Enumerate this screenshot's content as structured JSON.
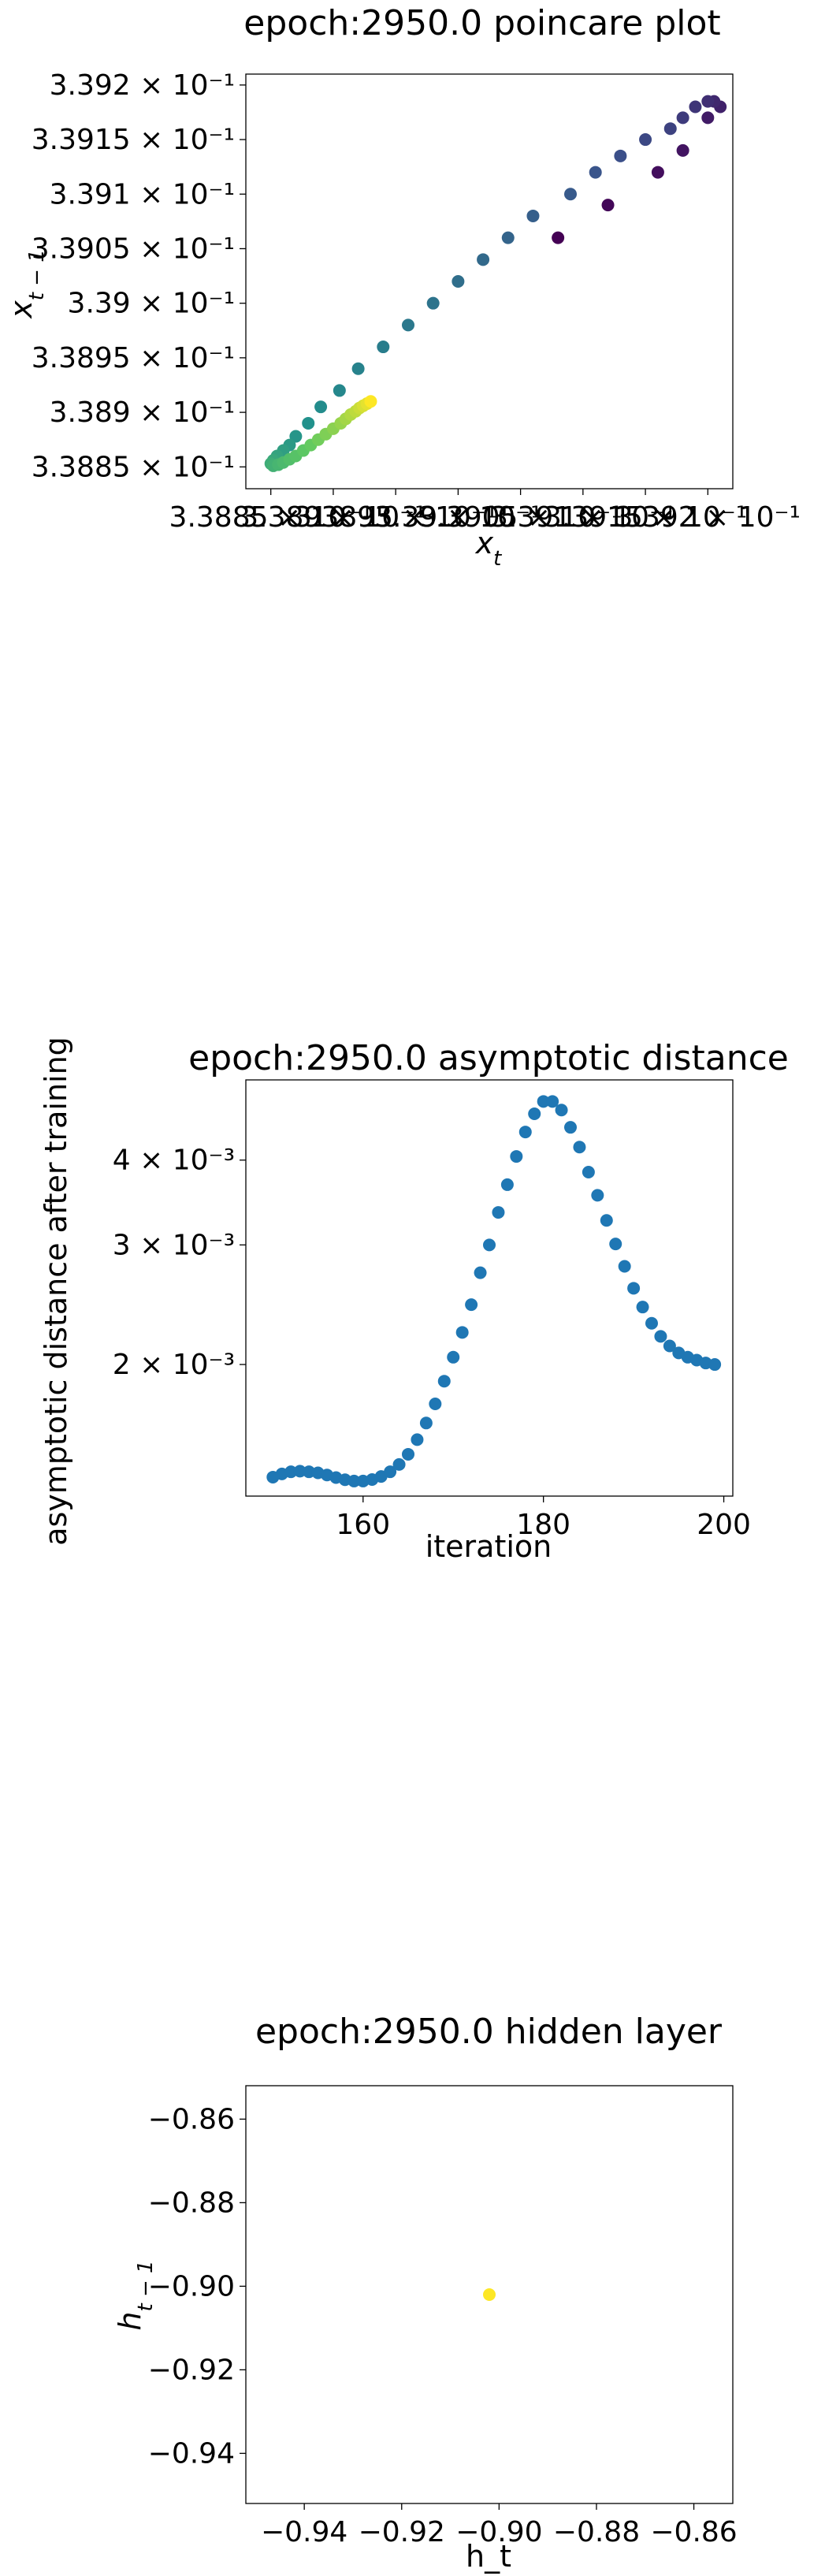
{
  "chart_data": [
    {
      "type": "scatter",
      "title": "epoch:2950.0 poincare plot",
      "xlabel": "x_t",
      "ylabel": "x_{t-1}",
      "xlim": [
        0.33883,
        0.33922
      ],
      "ylim": [
        0.33883,
        0.33921
      ],
      "y_ticks": [
        {
          "value": 0.33885,
          "label": "3.3885 × 10⁻¹"
        },
        {
          "value": 0.3389,
          "label": "3.389 × 10⁻¹"
        },
        {
          "value": 0.33895,
          "label": "3.3895 × 10⁻¹"
        },
        {
          "value": 0.339,
          "label": "3.39 × 10⁻¹"
        },
        {
          "value": 0.33905,
          "label": "3.3905 × 10⁻¹"
        },
        {
          "value": 0.3391,
          "label": "3.391 × 10⁻¹"
        },
        {
          "value": 0.33915,
          "label": "3.3915 × 10⁻¹"
        },
        {
          "value": 0.3392,
          "label": "3.392 × 10⁻¹"
        }
      ],
      "x_ticks": [
        {
          "value": 0.33885,
          "label": "3.3885 × 10⁻¹"
        },
        {
          "value": 0.3389,
          "label": "3.389 × 10⁻¹"
        },
        {
          "value": 0.33895,
          "label": "3.3895 × 10⁻¹"
        },
        {
          "value": 0.339,
          "label": "3.39 × 10⁻¹"
        },
        {
          "value": 0.33905,
          "label": "3.3905 × 10⁻¹"
        },
        {
          "value": 0.3391,
          "label": "3.391 × 10⁻¹"
        },
        {
          "value": 0.33915,
          "label": "3.3915 × 10⁻¹"
        },
        {
          "value": 0.3392,
          "label": "3.392 × 10⁻¹"
        }
      ],
      "colormap": [
        "#440154",
        "#3b528b",
        "#21918c",
        "#5ec962",
        "#fde725"
      ],
      "points": [
        {
          "x": 0.33908,
          "y": 0.33906,
          "c": 0.0
        },
        {
          "x": 0.33912,
          "y": 0.33909,
          "c": 0.02
        },
        {
          "x": 0.33916,
          "y": 0.33912,
          "c": 0.04
        },
        {
          "x": 0.33918,
          "y": 0.33914,
          "c": 0.06
        },
        {
          "x": 0.3392,
          "y": 0.33917,
          "c": 0.08
        },
        {
          "x": 0.33921,
          "y": 0.33918,
          "c": 0.1
        },
        {
          "x": 0.339205,
          "y": 0.339185,
          "c": 0.12
        },
        {
          "x": 0.3392,
          "y": 0.339185,
          "c": 0.14
        },
        {
          "x": 0.33919,
          "y": 0.33918,
          "c": 0.16
        },
        {
          "x": 0.33918,
          "y": 0.33917,
          "c": 0.18
        },
        {
          "x": 0.33917,
          "y": 0.33916,
          "c": 0.2
        },
        {
          "x": 0.33915,
          "y": 0.33915,
          "c": 0.22
        },
        {
          "x": 0.33913,
          "y": 0.339135,
          "c": 0.24
        },
        {
          "x": 0.33911,
          "y": 0.33912,
          "c": 0.26
        },
        {
          "x": 0.33909,
          "y": 0.3391,
          "c": 0.28
        },
        {
          "x": 0.33906,
          "y": 0.33908,
          "c": 0.3
        },
        {
          "x": 0.33904,
          "y": 0.33906,
          "c": 0.32
        },
        {
          "x": 0.33902,
          "y": 0.33904,
          "c": 0.34
        },
        {
          "x": 0.339,
          "y": 0.33902,
          "c": 0.36
        },
        {
          "x": 0.33898,
          "y": 0.339,
          "c": 0.38
        },
        {
          "x": 0.33896,
          "y": 0.33898,
          "c": 0.4
        },
        {
          "x": 0.33894,
          "y": 0.33896,
          "c": 0.42
        },
        {
          "x": 0.33892,
          "y": 0.33894,
          "c": 0.44
        },
        {
          "x": 0.338905,
          "y": 0.33892,
          "c": 0.46
        },
        {
          "x": 0.33889,
          "y": 0.338905,
          "c": 0.48
        },
        {
          "x": 0.33888,
          "y": 0.33889,
          "c": 0.5
        },
        {
          "x": 0.33887,
          "y": 0.338878,
          "c": 0.52
        },
        {
          "x": 0.338865,
          "y": 0.33887,
          "c": 0.54
        },
        {
          "x": 0.33886,
          "y": 0.338865,
          "c": 0.56
        },
        {
          "x": 0.338855,
          "y": 0.33886,
          "c": 0.58
        },
        {
          "x": 0.338852,
          "y": 0.338856,
          "c": 0.6
        },
        {
          "x": 0.33885,
          "y": 0.338853,
          "c": 0.62
        },
        {
          "x": 0.338852,
          "y": 0.338851,
          "c": 0.64
        },
        {
          "x": 0.338856,
          "y": 0.338852,
          "c": 0.66
        },
        {
          "x": 0.33886,
          "y": 0.338854,
          "c": 0.68
        },
        {
          "x": 0.338865,
          "y": 0.338857,
          "c": 0.7
        },
        {
          "x": 0.33887,
          "y": 0.33886,
          "c": 0.72
        },
        {
          "x": 0.338876,
          "y": 0.338865,
          "c": 0.74
        },
        {
          "x": 0.338882,
          "y": 0.33887,
          "c": 0.76
        },
        {
          "x": 0.338888,
          "y": 0.338875,
          "c": 0.78
        },
        {
          "x": 0.338894,
          "y": 0.33888,
          "c": 0.8
        },
        {
          "x": 0.3389,
          "y": 0.338885,
          "c": 0.82
        },
        {
          "x": 0.338906,
          "y": 0.33889,
          "c": 0.84
        },
        {
          "x": 0.33891,
          "y": 0.338894,
          "c": 0.86
        },
        {
          "x": 0.338914,
          "y": 0.338898,
          "c": 0.88
        },
        {
          "x": 0.338918,
          "y": 0.338901,
          "c": 0.9
        },
        {
          "x": 0.338921,
          "y": 0.338904,
          "c": 0.92
        },
        {
          "x": 0.338924,
          "y": 0.338906,
          "c": 0.94
        },
        {
          "x": 0.338927,
          "y": 0.338908,
          "c": 0.96
        },
        {
          "x": 0.33893,
          "y": 0.33891,
          "c": 1.0
        }
      ]
    },
    {
      "type": "scatter",
      "title": "epoch:2950.0 asymptotic distance",
      "xlabel": "iteration",
      "ylabel": "asymptotic distance after training",
      "yscale": "log",
      "xlim": [
        147,
        201
      ],
      "ylim": [
        0.00128,
        0.00525
      ],
      "x_ticks": [
        {
          "value": 160,
          "label": "160"
        },
        {
          "value": 180,
          "label": "180"
        },
        {
          "value": 200,
          "label": "200"
        }
      ],
      "y_ticks": [
        {
          "value": 0.002,
          "label": "2 × 10⁻³"
        },
        {
          "value": 0.003,
          "label": "3 × 10⁻³"
        },
        {
          "value": 0.004,
          "label": "4 × 10⁻³"
        }
      ],
      "color": "#1f77b4",
      "x": [
        150,
        151,
        152,
        153,
        154,
        155,
        156,
        157,
        158,
        159,
        160,
        161,
        162,
        163,
        164,
        165,
        166,
        167,
        168,
        169,
        170,
        171,
        172,
        173,
        174,
        175,
        176,
        177,
        178,
        179,
        180,
        181,
        182,
        183,
        184,
        185,
        186,
        187,
        188,
        189,
        190,
        191,
        192,
        193,
        194,
        195,
        196,
        197,
        198,
        199
      ],
      "y": [
        0.001365,
        0.00138,
        0.00139,
        0.001393,
        0.00139,
        0.001385,
        0.001375,
        0.001363,
        0.001353,
        0.001347,
        0.001347,
        0.001354,
        0.001368,
        0.00139,
        0.001425,
        0.001475,
        0.00155,
        0.00164,
        0.00175,
        0.00189,
        0.00205,
        0.00223,
        0.00245,
        0.00273,
        0.003,
        0.00335,
        0.00368,
        0.00405,
        0.0044,
        0.00468,
        0.00488,
        0.00488,
        0.00474,
        0.00447,
        0.00418,
        0.00384,
        0.00355,
        0.00326,
        0.00301,
        0.00279,
        0.00259,
        0.00243,
        0.0023,
        0.0022,
        0.00213,
        0.00208,
        0.00205,
        0.00203,
        0.00201,
        0.002
      ]
    },
    {
      "type": "scatter",
      "title": "epoch:2950.0 hidden layer",
      "xlabel": "h_t",
      "ylabel": "h_{t-1}",
      "xlim": [
        -0.952,
        -0.852
      ],
      "ylim": [
        -0.952,
        -0.852
      ],
      "x_ticks": [
        {
          "value": -0.94,
          "label": "−0.94"
        },
        {
          "value": -0.92,
          "label": "−0.92"
        },
        {
          "value": -0.9,
          "label": "−0.90"
        },
        {
          "value": -0.88,
          "label": "−0.88"
        },
        {
          "value": -0.86,
          "label": "−0.86"
        }
      ],
      "y_ticks": [
        {
          "value": -0.86,
          "label": "−0.86"
        },
        {
          "value": -0.88,
          "label": "−0.88"
        },
        {
          "value": -0.9,
          "label": "−0.90"
        },
        {
          "value": -0.92,
          "label": "−0.92"
        },
        {
          "value": -0.94,
          "label": "−0.94"
        }
      ],
      "color": "#fde725",
      "points": [
        {
          "x": -0.902,
          "y": -0.902
        }
      ]
    }
  ]
}
